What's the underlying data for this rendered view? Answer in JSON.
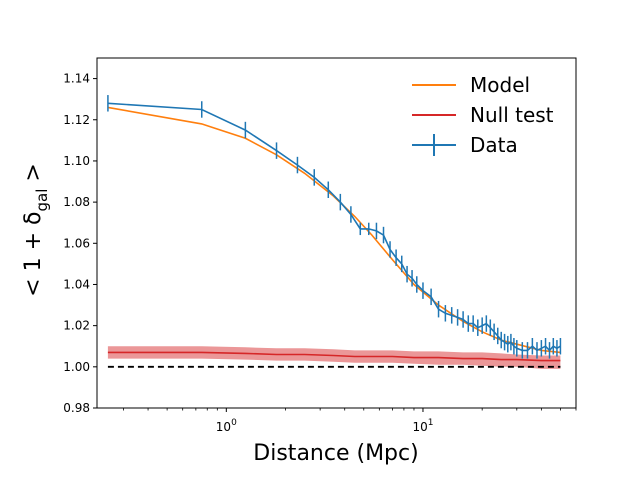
{
  "chart_data": {
    "type": "line",
    "title": "",
    "xlabel": "Distance (Mpc)",
    "ylabel_base": "< 1 + δ",
    "ylabel_sub": "gal",
    "ylabel_tail": " >",
    "xscale": "log",
    "xlim": [
      0.22,
      60
    ],
    "ylim": [
      0.98,
      1.15
    ],
    "x_ticks": [
      {
        "value": 1,
        "base": "10",
        "exp": "0"
      },
      {
        "value": 10,
        "base": "10",
        "exp": "1"
      }
    ],
    "y_ticks": [
      {
        "value": 0.98,
        "label": "0.98"
      },
      {
        "value": 1.0,
        "label": "1.00"
      },
      {
        "value": 1.02,
        "label": "1.02"
      },
      {
        "value": 1.04,
        "label": "1.04"
      },
      {
        "value": 1.06,
        "label": "1.06"
      },
      {
        "value": 1.08,
        "label": "1.08"
      },
      {
        "value": 1.1,
        "label": "1.10"
      },
      {
        "value": 1.12,
        "label": "1.12"
      },
      {
        "value": 1.14,
        "label": "1.14"
      }
    ],
    "legend": [
      {
        "name": "Model",
        "color": "#ff7f0e",
        "style": "line"
      },
      {
        "name": "Null test",
        "color": "#d62728",
        "style": "line"
      },
      {
        "name": "Data",
        "color": "#1f77b4",
        "style": "errorbar"
      }
    ],
    "legend_position": "top-right",
    "reference_line": {
      "y": 1.0,
      "style": "dashed",
      "color": "#000000"
    },
    "series": [
      {
        "name": "Model",
        "color": "#ff7f0e",
        "x": [
          0.25,
          0.75,
          1.25,
          1.8,
          2.5,
          3.5,
          4.5,
          5.5,
          7,
          9,
          12,
          16,
          20,
          25,
          30,
          40,
          50
        ],
        "y": [
          1.126,
          1.118,
          1.111,
          1.103,
          1.094,
          1.083,
          1.073,
          1.064,
          1.052,
          1.04,
          1.03,
          1.022,
          1.017,
          1.013,
          1.011,
          1.008,
          1.007
        ]
      },
      {
        "name": "Data",
        "color": "#1f77b4",
        "x": [
          0.25,
          0.75,
          1.25,
          1.8,
          2.3,
          2.8,
          3.3,
          3.8,
          4.3,
          4.8,
          5.3,
          5.8,
          6.3,
          6.8,
          7.3,
          7.8,
          8.3,
          8.8,
          9.3,
          10,
          11,
          12,
          13,
          14,
          15,
          16,
          17,
          18,
          19,
          20,
          21,
          22,
          23,
          24,
          25,
          26,
          27,
          28,
          29,
          30,
          32,
          34,
          36,
          38,
          40,
          42,
          44,
          46,
          48,
          50
        ],
        "y": [
          1.128,
          1.125,
          1.115,
          1.105,
          1.098,
          1.092,
          1.086,
          1.08,
          1.074,
          1.067,
          1.067,
          1.066,
          1.064,
          1.057,
          1.053,
          1.05,
          1.045,
          1.043,
          1.04,
          1.037,
          1.034,
          1.028,
          1.026,
          1.025,
          1.024,
          1.023,
          1.021,
          1.021,
          1.019,
          1.02,
          1.021,
          1.019,
          1.017,
          1.015,
          1.013,
          1.012,
          1.011,
          1.012,
          1.01,
          1.009,
          1.008,
          1.008,
          1.01,
          1.008,
          1.009,
          1.01,
          1.008,
          1.01,
          1.009,
          1.01
        ],
        "yerr": [
          0.004,
          0.004,
          0.004,
          0.004,
          0.004,
          0.004,
          0.004,
          0.004,
          0.004,
          0.003,
          0.003,
          0.004,
          0.004,
          0.004,
          0.004,
          0.004,
          0.004,
          0.004,
          0.004,
          0.004,
          0.004,
          0.004,
          0.004,
          0.004,
          0.004,
          0.004,
          0.004,
          0.004,
          0.004,
          0.004,
          0.004,
          0.004,
          0.004,
          0.004,
          0.004,
          0.004,
          0.004,
          0.004,
          0.004,
          0.004,
          0.004,
          0.004,
          0.004,
          0.004,
          0.004,
          0.004,
          0.004,
          0.004,
          0.004,
          0.004
        ]
      },
      {
        "name": "Null test",
        "color": "#d62728",
        "band_color": "#e88586",
        "x": [
          0.25,
          0.75,
          1.25,
          1.8,
          2.5,
          3.5,
          4.5,
          5.5,
          7,
          9,
          12,
          16,
          20,
          25,
          30,
          40,
          50
        ],
        "y": [
          1.007,
          1.007,
          1.0065,
          1.006,
          1.006,
          1.0055,
          1.005,
          1.005,
          1.005,
          1.0045,
          1.0045,
          1.004,
          1.004,
          1.0035,
          1.0035,
          1.003,
          1.003
        ],
        "y_low": [
          1.004,
          1.004,
          1.0035,
          1.003,
          1.003,
          1.0025,
          1.002,
          1.002,
          1.002,
          1.0015,
          1.001,
          1.001,
          1.0005,
          1.0,
          1.0,
          0.999,
          0.999
        ],
        "y_high": [
          1.01,
          1.01,
          1.0095,
          1.009,
          1.009,
          1.0085,
          1.008,
          1.008,
          1.008,
          1.0075,
          1.0075,
          1.007,
          1.007,
          1.0065,
          1.006,
          1.0055,
          1.0055
        ]
      }
    ]
  }
}
